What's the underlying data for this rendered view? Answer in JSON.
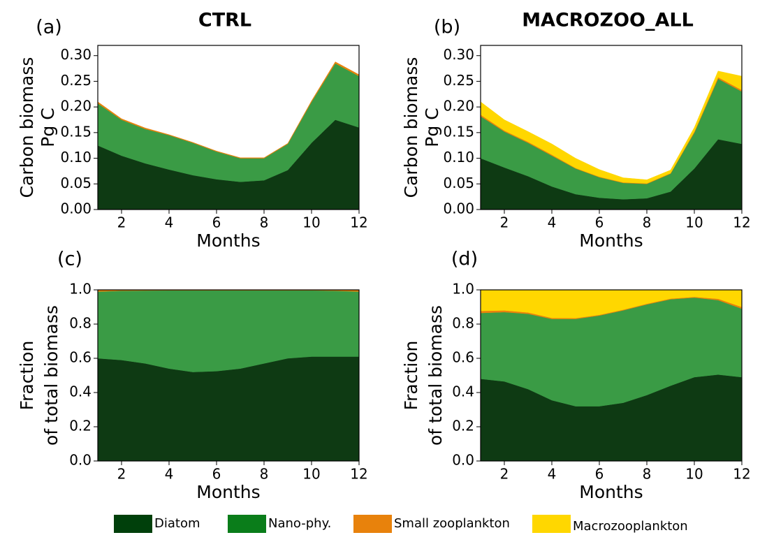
{
  "chart_data": [
    {
      "type": "stacked_area",
      "panel": "(a)",
      "title": "CTRL",
      "xlabel": "Months",
      "ylabel": [
        "Carbon biomass",
        "Pg C"
      ],
      "x": [
        1,
        2,
        3,
        4,
        5,
        6,
        7,
        8,
        9,
        10,
        11,
        12
      ],
      "xlim": [
        1,
        12
      ],
      "xticks": [
        2,
        4,
        6,
        8,
        10,
        12
      ],
      "ylim": [
        0,
        0.32
      ],
      "yticks": [
        {
          "value": 0,
          "label": "0.00"
        },
        {
          "value": 0.05,
          "label": "0.05"
        },
        {
          "value": 0.1,
          "label": "0.10"
        },
        {
          "value": 0.15,
          "label": "0.15"
        },
        {
          "value": 0.2,
          "label": "0.20"
        },
        {
          "value": 0.25,
          "label": "0.25"
        },
        {
          "value": 0.3,
          "label": "0.30"
        }
      ],
      "series": [
        {
          "color": "#0e3a13",
          "values": [
            0.125,
            0.105,
            0.09,
            0.078,
            0.067,
            0.059,
            0.054,
            0.057,
            0.077,
            0.13,
            0.175,
            0.16
          ]
        },
        {
          "color": "#3a9b45",
          "values": [
            0.082,
            0.07,
            0.067,
            0.067,
            0.063,
            0.054,
            0.046,
            0.043,
            0.051,
            0.08,
            0.11,
            0.1
          ]
        },
        {
          "color": "#e8820c",
          "values": [
            0.003,
            0.002,
            0.002,
            0.001,
            0.001,
            0.001,
            0.001,
            0.001,
            0.001,
            0.002,
            0.003,
            0.003
          ]
        }
      ]
    },
    {
      "type": "stacked_area",
      "panel": "(b)",
      "title": "MACROZOO_ALL",
      "xlabel": "Months",
      "ylabel": [
        "Carbon biomass",
        "Pg C"
      ],
      "x": [
        1,
        2,
        3,
        4,
        5,
        6,
        7,
        8,
        9,
        10,
        11,
        12
      ],
      "xlim": [
        1,
        12
      ],
      "xticks": [
        2,
        4,
        6,
        8,
        10,
        12
      ],
      "ylim": [
        0,
        0.32
      ],
      "yticks": [
        {
          "value": 0,
          "label": "0.00"
        },
        {
          "value": 0.05,
          "label": "0.05"
        },
        {
          "value": 0.1,
          "label": "0.10"
        },
        {
          "value": 0.15,
          "label": "0.15"
        },
        {
          "value": 0.2,
          "label": "0.20"
        },
        {
          "value": 0.25,
          "label": "0.25"
        },
        {
          "value": 0.3,
          "label": "0.30"
        }
      ],
      "series": [
        {
          "color": "#0e3a13",
          "values": [
            0.1,
            0.082,
            0.065,
            0.045,
            0.03,
            0.023,
            0.02,
            0.022,
            0.035,
            0.08,
            0.137,
            0.128
          ]
        },
        {
          "color": "#3a9b45",
          "values": [
            0.082,
            0.07,
            0.065,
            0.06,
            0.05,
            0.04,
            0.032,
            0.028,
            0.035,
            0.07,
            0.118,
            0.102
          ]
        },
        {
          "color": "#e8820c",
          "values": [
            0.003,
            0.002,
            0.002,
            0.002,
            0.001,
            0.001,
            0.001,
            0.001,
            0.001,
            0.002,
            0.003,
            0.003
          ]
        },
        {
          "color": "#ffd700",
          "values": [
            0.025,
            0.021,
            0.02,
            0.021,
            0.019,
            0.014,
            0.009,
            0.007,
            0.006,
            0.008,
            0.012,
            0.027
          ]
        }
      ]
    },
    {
      "type": "stacked_area",
      "panel": "(c)",
      "xlabel": "Months",
      "ylabel": [
        "Fraction",
        "of total biomass"
      ],
      "x": [
        1,
        2,
        3,
        4,
        5,
        6,
        7,
        8,
        9,
        10,
        11,
        12
      ],
      "xlim": [
        1,
        12
      ],
      "xticks": [
        2,
        4,
        6,
        8,
        10,
        12
      ],
      "ylim": [
        0,
        1
      ],
      "yticks": [
        {
          "value": 0,
          "label": "0.0"
        },
        {
          "value": 0.2,
          "label": "0.2"
        },
        {
          "value": 0.4,
          "label": "0.4"
        },
        {
          "value": 0.6,
          "label": "0.6"
        },
        {
          "value": 0.8,
          "label": "0.8"
        },
        {
          "value": 1,
          "label": "1.0"
        }
      ],
      "series": [
        {
          "color": "#0e3a13",
          "values": [
            0.6,
            0.59,
            0.57,
            0.54,
            0.52,
            0.525,
            0.54,
            0.57,
            0.6,
            0.61,
            0.61,
            0.61
          ]
        },
        {
          "color": "#3a9b45",
          "values": [
            0.39,
            0.405,
            0.426,
            0.457,
            0.477,
            0.472,
            0.457,
            0.427,
            0.397,
            0.387,
            0.385,
            0.38
          ]
        },
        {
          "color": "#e8820c",
          "values": [
            0.01,
            0.005,
            0.004,
            0.003,
            0.003,
            0.003,
            0.003,
            0.003,
            0.003,
            0.003,
            0.005,
            0.01
          ]
        }
      ]
    },
    {
      "type": "stacked_area",
      "panel": "(d)",
      "xlabel": "Months",
      "ylabel": [
        "Fraction",
        "of total biomass"
      ],
      "x": [
        1,
        2,
        3,
        4,
        5,
        6,
        7,
        8,
        9,
        10,
        11,
        12
      ],
      "xlim": [
        1,
        12
      ],
      "xticks": [
        2,
        4,
        6,
        8,
        10,
        12
      ],
      "ylim": [
        0,
        1
      ],
      "yticks": [
        {
          "value": 0,
          "label": "0.0"
        },
        {
          "value": 0.2,
          "label": "0.2"
        },
        {
          "value": 0.4,
          "label": "0.4"
        },
        {
          "value": 0.6,
          "label": "0.6"
        },
        {
          "value": 0.8,
          "label": "0.8"
        },
        {
          "value": 1,
          "label": "1.0"
        }
      ],
      "series": [
        {
          "color": "#0e3a13",
          "values": [
            0.48,
            0.465,
            0.42,
            0.355,
            0.32,
            0.32,
            0.34,
            0.385,
            0.44,
            0.49,
            0.505,
            0.49
          ]
        },
        {
          "color": "#3a9b45",
          "values": [
            0.385,
            0.405,
            0.44,
            0.475,
            0.51,
            0.53,
            0.54,
            0.53,
            0.505,
            0.465,
            0.435,
            0.4
          ]
        },
        {
          "color": "#e8820c",
          "values": [
            0.012,
            0.01,
            0.008,
            0.006,
            0.005,
            0.004,
            0.004,
            0.004,
            0.004,
            0.004,
            0.008,
            0.01
          ]
        },
        {
          "color": "#ffd700",
          "values": [
            0.123,
            0.12,
            0.132,
            0.164,
            0.165,
            0.146,
            0.116,
            0.081,
            0.051,
            0.041,
            0.052,
            0.1
          ]
        }
      ]
    }
  ],
  "legend": [
    {
      "name": "Diatom",
      "color": "#00400b"
    },
    {
      "name": "Nano-phy.",
      "color": "#0a7d1a"
    },
    {
      "name": "Small zooplankton",
      "color": "#e8820c"
    },
    {
      "name": "Macrozooplankton",
      "color": "#ffd700"
    }
  ]
}
